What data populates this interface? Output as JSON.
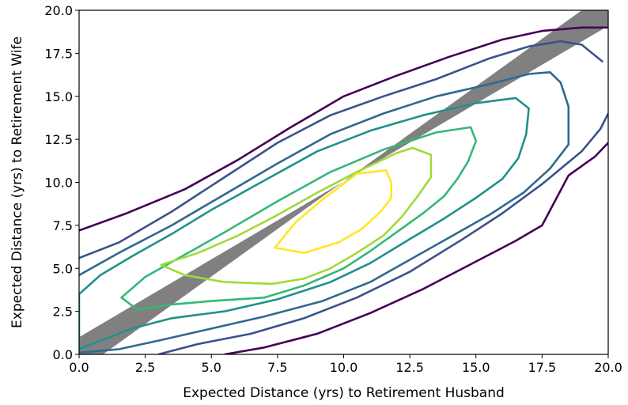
{
  "chart_data": {
    "type": "contour",
    "title": "",
    "xlabel": "Expected Distance (yrs) to Retirement Husband",
    "ylabel": "Expected Distance (yrs) to Retirement Wife",
    "xlim": [
      0,
      20
    ],
    "ylim": [
      0,
      20
    ],
    "x_ticks": [
      "0.0",
      "2.5",
      "5.0",
      "7.5",
      "10.0",
      "12.5",
      "15.0",
      "17.5",
      "20.0"
    ],
    "y_ticks": [
      "0.0",
      "2.5",
      "5.0",
      "7.5",
      "10.0",
      "12.5",
      "15.0",
      "17.5",
      "20.0"
    ],
    "grid": false,
    "colormap": "viridis",
    "diagonal_band": {
      "color": "#808080",
      "polygon": [
        [
          0,
          1
        ],
        [
          0,
          -1
        ],
        [
          19,
          20
        ],
        [
          21,
          20
        ]
      ]
    },
    "contours": [
      {
        "color": "#440154",
        "closed": false,
        "points": [
          [
            0,
            7.2
          ],
          [
            1.8,
            8.2
          ],
          [
            4,
            9.6
          ],
          [
            6,
            11.3
          ],
          [
            8,
            13.2
          ],
          [
            10,
            15
          ],
          [
            12,
            16.2
          ],
          [
            14,
            17.3
          ],
          [
            16,
            18.3
          ],
          [
            17.5,
            18.8
          ],
          [
            19,
            19
          ],
          [
            20,
            19
          ]
        ]
      },
      {
        "color": "#440154",
        "closed": false,
        "points": [
          [
            5.5,
            0
          ],
          [
            7,
            0.4
          ],
          [
            9,
            1.2
          ],
          [
            11,
            2.4
          ],
          [
            13,
            3.8
          ],
          [
            15,
            5.4
          ],
          [
            16.5,
            6.6
          ],
          [
            17.5,
            7.5
          ],
          [
            18.5,
            10.4
          ],
          [
            19.5,
            11.5
          ],
          [
            20,
            12.3
          ]
        ]
      },
      {
        "color": "#3b528b",
        "closed": false,
        "points": [
          [
            0,
            5.6
          ],
          [
            1.5,
            6.5
          ],
          [
            3.5,
            8.3
          ],
          [
            5.5,
            10.3
          ],
          [
            7.5,
            12.3
          ],
          [
            9.5,
            13.9
          ],
          [
            11.5,
            15
          ],
          [
            13.5,
            16
          ],
          [
            15.5,
            17.2
          ],
          [
            17,
            17.9
          ],
          [
            18.2,
            18.2
          ],
          [
            19,
            18
          ],
          [
            19.8,
            17
          ]
        ]
      },
      {
        "color": "#3b528b",
        "closed": false,
        "points": [
          [
            3,
            0
          ],
          [
            4.5,
            0.6
          ],
          [
            6.5,
            1.2
          ],
          [
            8.5,
            2.1
          ],
          [
            10.5,
            3.3
          ],
          [
            12.5,
            4.8
          ],
          [
            14.5,
            6.7
          ],
          [
            16,
            8.2
          ],
          [
            17.5,
            9.9
          ],
          [
            19,
            11.8
          ],
          [
            19.7,
            13.1
          ],
          [
            20,
            14
          ]
        ]
      },
      {
        "color": "#31688e",
        "closed": false,
        "points": [
          [
            0,
            4.6
          ],
          [
            1.5,
            5.9
          ],
          [
            3.5,
            7.5
          ],
          [
            5.5,
            9.3
          ],
          [
            7.5,
            11.1
          ],
          [
            9.5,
            12.8
          ],
          [
            11.5,
            14
          ],
          [
            13.5,
            15
          ],
          [
            15.5,
            15.7
          ],
          [
            17,
            16.3
          ],
          [
            17.8,
            16.4
          ],
          [
            18.2,
            15.8
          ],
          [
            18.5,
            14.4
          ],
          [
            18.5,
            12.2
          ],
          [
            17.8,
            10.8
          ],
          [
            16.8,
            9.4
          ],
          [
            15.5,
            8.1
          ],
          [
            14,
            6.8
          ],
          [
            12.5,
            5.5
          ],
          [
            11,
            4.2
          ],
          [
            9.2,
            3.1
          ],
          [
            7,
            2.2
          ],
          [
            5,
            1.5
          ],
          [
            3,
            0.8
          ],
          [
            1.5,
            0.3
          ],
          [
            0,
            0.1
          ]
        ]
      },
      {
        "color": "#21908d",
        "closed": true,
        "points": [
          [
            0,
            3.5
          ],
          [
            0.8,
            4.6
          ],
          [
            2,
            5.7
          ],
          [
            3.5,
            7
          ],
          [
            5,
            8.4
          ],
          [
            7,
            10.1
          ],
          [
            9,
            11.8
          ],
          [
            11,
            13
          ],
          [
            13,
            13.9
          ],
          [
            15,
            14.6
          ],
          [
            16.5,
            14.9
          ],
          [
            17,
            14.3
          ],
          [
            16.9,
            12.8
          ],
          [
            16.6,
            11.4
          ],
          [
            16,
            10.2
          ],
          [
            15,
            9.1
          ],
          [
            13.8,
            7.9
          ],
          [
            12.5,
            6.7
          ],
          [
            11,
            5.3
          ],
          [
            9.5,
            4.2
          ],
          [
            7.5,
            3.2
          ],
          [
            5.5,
            2.5
          ],
          [
            3.5,
            2.1
          ],
          [
            2,
            1.5
          ],
          [
            0.8,
            0.8
          ],
          [
            0,
            0.3
          ],
          [
            0,
            3.5
          ]
        ]
      },
      {
        "color": "#35b779",
        "closed": true,
        "points": [
          [
            1.6,
            3.3
          ],
          [
            2.5,
            4.5
          ],
          [
            4,
            5.8
          ],
          [
            5.5,
            7.1
          ],
          [
            7.5,
            8.9
          ],
          [
            9.5,
            10.6
          ],
          [
            11.5,
            11.9
          ],
          [
            13.5,
            12.9
          ],
          [
            14.8,
            13.2
          ],
          [
            15,
            12.4
          ],
          [
            14.7,
            11.2
          ],
          [
            14.3,
            10.2
          ],
          [
            13.8,
            9.2
          ],
          [
            13,
            8.2
          ],
          [
            12,
            7.1
          ],
          [
            11,
            6
          ],
          [
            10,
            5
          ],
          [
            8.5,
            4
          ],
          [
            7,
            3.3
          ],
          [
            5,
            3.1
          ],
          [
            3.5,
            2.9
          ],
          [
            2.2,
            2.6
          ],
          [
            1.6,
            3.3
          ]
        ]
      },
      {
        "color": "#a0da39",
        "closed": true,
        "points": [
          [
            3.1,
            5.2
          ],
          [
            4.5,
            5.9
          ],
          [
            6,
            6.9
          ],
          [
            7.5,
            8.1
          ],
          [
            9,
            9.4
          ],
          [
            10.5,
            10.6
          ],
          [
            12,
            11.7
          ],
          [
            12.6,
            12
          ],
          [
            13.3,
            11.6
          ],
          [
            13.3,
            10.3
          ],
          [
            12.8,
            9.2
          ],
          [
            12.2,
            8
          ],
          [
            11.5,
            6.9
          ],
          [
            10.5,
            5.9
          ],
          [
            9.5,
            5
          ],
          [
            8.5,
            4.4
          ],
          [
            7.3,
            4.1
          ],
          [
            5.5,
            4.2
          ],
          [
            4,
            4.6
          ],
          [
            3.1,
            5.2
          ]
        ]
      },
      {
        "color": "#fde725",
        "closed": true,
        "points": [
          [
            7.4,
            6.2
          ],
          [
            8.2,
            7.7
          ],
          [
            9.2,
            9
          ],
          [
            10.5,
            10.5
          ],
          [
            11.6,
            10.7
          ],
          [
            11.8,
            10
          ],
          [
            11.8,
            9.1
          ],
          [
            11.4,
            8.3
          ],
          [
            10.7,
            7.3
          ],
          [
            9.8,
            6.5
          ],
          [
            8.5,
            5.9
          ],
          [
            7.4,
            6.2
          ]
        ]
      }
    ]
  }
}
